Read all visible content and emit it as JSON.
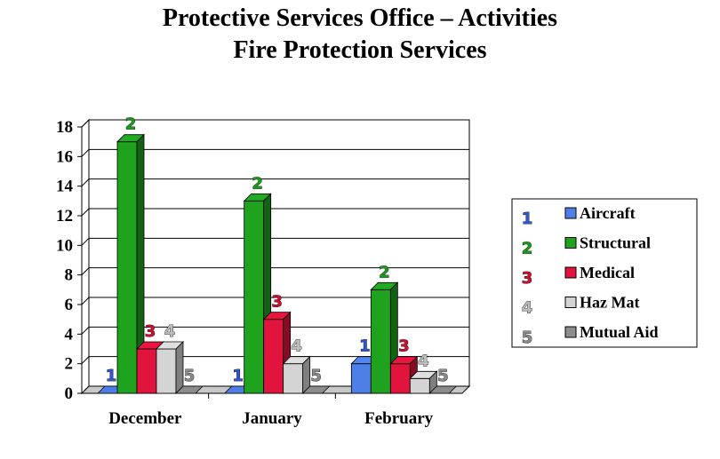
{
  "header": {
    "title_line1": "Protective Services Office – Activities",
    "title_line2": "Fire Protection Services"
  },
  "chart_data": {
    "type": "bar",
    "title": "Protective Services Office – Activities / Fire Protection Services",
    "categories": [
      "December",
      "January",
      "February"
    ],
    "series": [
      {
        "name": "Aircraft",
        "values": [
          0,
          0,
          2
        ],
        "color": "#4d7fe6",
        "label": "1",
        "label_color": "#3355cc"
      },
      {
        "name": "Structural",
        "values": [
          17,
          13,
          7
        ],
        "color": "#1fa31f",
        "label": "2",
        "label_color": "#1a9a1a"
      },
      {
        "name": "Medical",
        "values": [
          3,
          5,
          2
        ],
        "color": "#e0143c",
        "label": "3",
        "label_color": "#c81030"
      },
      {
        "name": "Haz Mat",
        "values": [
          3,
          2,
          1
        ],
        "color": "#d4d4d4",
        "label": "4",
        "label_color": "#bdbdbd"
      },
      {
        "name": "Mutual Aid",
        "values": [
          0,
          0,
          0
        ],
        "color": "#8c8c8c",
        "label": "5",
        "label_color": "#8a8a8a"
      }
    ],
    "ylim": [
      0,
      18
    ],
    "yticks": [
      0,
      2,
      4,
      6,
      8,
      10,
      12,
      14,
      16,
      18
    ],
    "xlabel": "",
    "ylabel": "",
    "grid": true,
    "legend": "right"
  }
}
